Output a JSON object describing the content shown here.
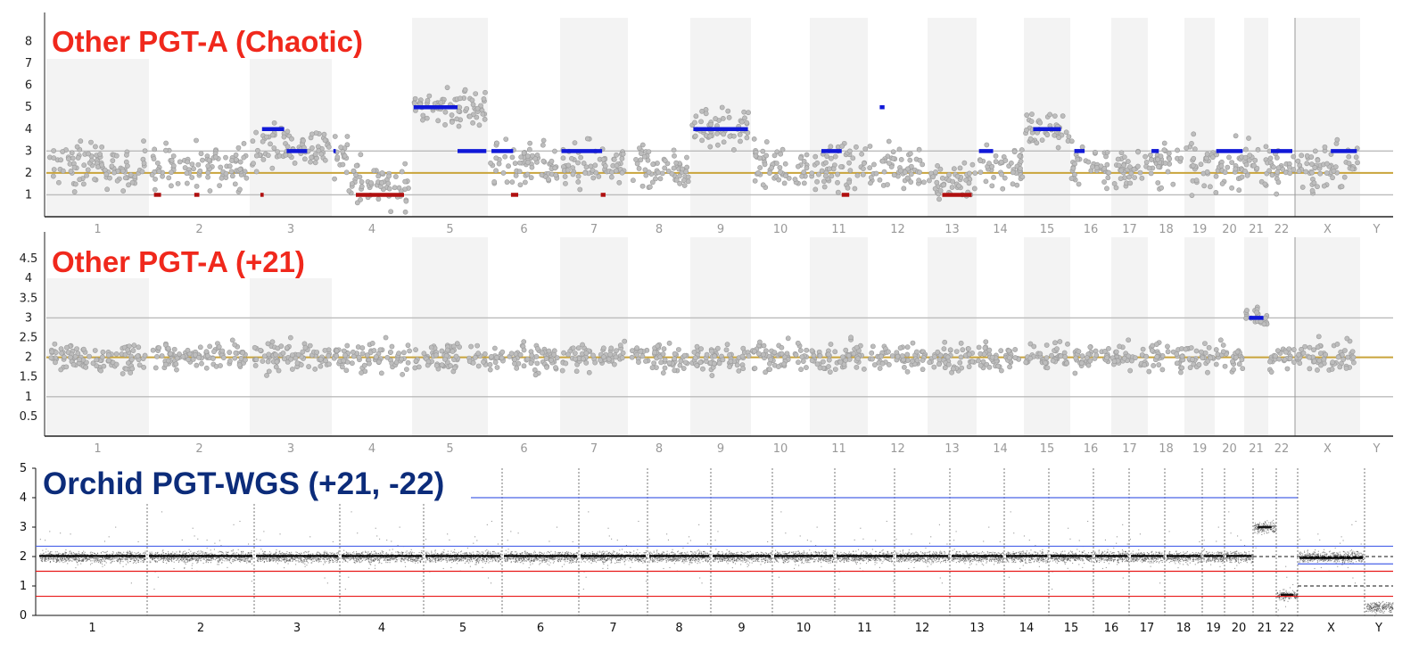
{
  "chart_data": [
    {
      "type": "scatter",
      "title": "Other PGT-A (Chaotic)",
      "title_color": "#f0281c",
      "y_ticks": [
        "1",
        "2",
        "3",
        "4",
        "5",
        "6",
        "7",
        "8"
      ],
      "ylim": [
        0,
        9
      ],
      "reference_lines": [
        {
          "y": 2,
          "color": "#c9a43b"
        },
        {
          "y": 1,
          "color": "#bbbbbb"
        },
        {
          "y": 3,
          "color": "#bbbbbb"
        }
      ],
      "chromosomes": [
        "1",
        "2",
        "3",
        "4",
        "5",
        "6",
        "7",
        "8",
        "9",
        "10",
        "11",
        "12",
        "13",
        "14",
        "15",
        "16",
        "17",
        "18",
        "19",
        "20",
        "21",
        "22",
        "X",
        "Y"
      ],
      "segments": [
        {
          "chrom": "2",
          "x": [
            0.05,
            0.12
          ],
          "y": 1,
          "color": "#b01010"
        },
        {
          "chrom": "2",
          "x": [
            0.45,
            0.5
          ],
          "y": 1,
          "color": "#b01010"
        },
        {
          "chrom": "3",
          "x": [
            0.15,
            0.42
          ],
          "y": 4,
          "color": "#1018d8"
        },
        {
          "chrom": "3",
          "x": [
            0.45,
            0.7
          ],
          "y": 3,
          "color": "#1018d8"
        },
        {
          "chrom": "3",
          "x": [
            0.13,
            0.17
          ],
          "y": 1,
          "color": "#b01010"
        },
        {
          "chrom": "4",
          "x": [
            0.02,
            0.05
          ],
          "y": 3,
          "color": "#1018d8"
        },
        {
          "chrom": "4",
          "x": [
            0.3,
            0.9
          ],
          "y": 1,
          "color": "#b01010"
        },
        {
          "chrom": "5",
          "x": [
            0.02,
            0.6
          ],
          "y": 5,
          "color": "#1018d8"
        },
        {
          "chrom": "5",
          "x": [
            0.6,
            0.98
          ],
          "y": 3,
          "color": "#1018d8"
        },
        {
          "chrom": "6",
          "x": [
            0.05,
            0.35
          ],
          "y": 3,
          "color": "#1018d8"
        },
        {
          "chrom": "6",
          "x": [
            0.32,
            0.42
          ],
          "y": 1,
          "color": "#b01010"
        },
        {
          "chrom": "7",
          "x": [
            0.02,
            0.62
          ],
          "y": 3,
          "color": "#1018d8"
        },
        {
          "chrom": "7",
          "x": [
            0.6,
            0.67
          ],
          "y": 1,
          "color": "#b01010"
        },
        {
          "chrom": "9",
          "x": [
            0.05,
            0.95
          ],
          "y": 4,
          "color": "#1018d8"
        },
        {
          "chrom": "11",
          "x": [
            0.2,
            0.55
          ],
          "y": 3,
          "color": "#1018d8"
        },
        {
          "chrom": "11",
          "x": [
            0.55,
            0.68
          ],
          "y": 1,
          "color": "#b01010"
        },
        {
          "chrom": "12",
          "x": [
            0.2,
            0.28
          ],
          "y": 5,
          "color": "#1018d8"
        },
        {
          "chrom": "13",
          "x": [
            0.3,
            0.9
          ],
          "y": 1,
          "color": "#b01010"
        },
        {
          "chrom": "14",
          "x": [
            0.05,
            0.35
          ],
          "y": 3,
          "color": "#1018d8"
        },
        {
          "chrom": "15",
          "x": [
            0.2,
            0.8
          ],
          "y": 4,
          "color": "#1018d8"
        },
        {
          "chrom": "16",
          "x": [
            0.1,
            0.35
          ],
          "y": 3,
          "color": "#1018d8"
        },
        {
          "chrom": "18",
          "x": [
            0.1,
            0.3
          ],
          "y": 3,
          "color": "#1018d8"
        },
        {
          "chrom": "20",
          "x": [
            0.05,
            0.95
          ],
          "y": 3,
          "color": "#1018d8"
        },
        {
          "chrom": "22",
          "x": [
            0.1,
            0.9
          ],
          "y": 3,
          "color": "#1018d8"
        },
        {
          "chrom": "X",
          "x": [
            0.55,
            0.95
          ],
          "y": 3,
          "color": "#1018d8"
        }
      ]
    },
    {
      "type": "scatter",
      "title": "Other PGT-A (+21)",
      "title_color": "#f0281c",
      "y_ticks": [
        "0.5",
        "1",
        "1.5",
        "2",
        "2.5",
        "3",
        "3.5",
        "4",
        "4.5"
      ],
      "ylim": [
        0,
        5
      ],
      "reference_lines": [
        {
          "y": 2,
          "color": "#c9a43b"
        },
        {
          "y": 1,
          "color": "#bbbbbb"
        },
        {
          "y": 3,
          "color": "#bbbbbb"
        }
      ],
      "chromosomes": [
        "1",
        "2",
        "3",
        "4",
        "5",
        "6",
        "7",
        "8",
        "9",
        "10",
        "11",
        "12",
        "13",
        "14",
        "15",
        "16",
        "17",
        "18",
        "19",
        "20",
        "21",
        "22",
        "X",
        "Y"
      ],
      "segments": [
        {
          "chrom": "21",
          "x": [
            0.2,
            0.8
          ],
          "y": 3,
          "color": "#1018d8"
        }
      ]
    },
    {
      "type": "scatter",
      "title": "Orchid PGT-WGS (+21, -22)",
      "title_color": "#0c2c7a",
      "y_ticks": [
        "0",
        "1",
        "2",
        "3",
        "4",
        "5"
      ],
      "ylim": [
        0,
        5
      ],
      "reference_lines": [
        {
          "y": 2.35,
          "color": "#4a63e8"
        },
        {
          "y": 1.5,
          "color": "#e81818"
        },
        {
          "y": 0.65,
          "color": "#e81818"
        }
      ],
      "chromosomes": [
        "1",
        "2",
        "3",
        "4",
        "5",
        "6",
        "7",
        "8",
        "9",
        "10",
        "11",
        "12",
        "13",
        "14",
        "15",
        "16",
        "17",
        "18",
        "19",
        "20",
        "21",
        "22",
        "X",
        "Y"
      ],
      "segments": [
        {
          "chrom": "21",
          "x": [
            0.2,
            0.8
          ],
          "y": 3,
          "color": "#111111"
        },
        {
          "chrom": "22",
          "x": [
            0.2,
            0.8
          ],
          "y": 0.7,
          "color": "#111111"
        }
      ]
    }
  ]
}
